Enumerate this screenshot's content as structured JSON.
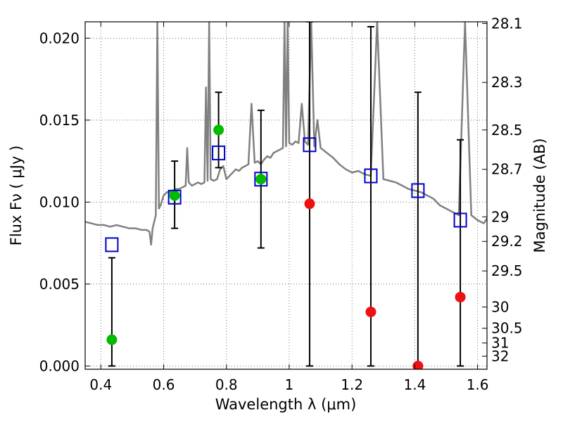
{
  "chart_data": {
    "type": "scatter",
    "title": "",
    "xlabel": "Wavelength  λ (μm)",
    "ylabel": "Flux  Fν  ( μJy )",
    "y2label": "Magnitude (AB)",
    "xlim": [
      0.35,
      1.63
    ],
    "ylim": [
      -0.0002,
      0.021
    ],
    "grid": true,
    "x_ticks": [
      0.4,
      0.6,
      0.8,
      1.0,
      1.2,
      1.4,
      1.6
    ],
    "x_tick_labels": [
      "0.4",
      "0.6",
      "0.8",
      "1",
      "1.2",
      "1.4",
      "1.6"
    ],
    "y_ticks": [
      0.0,
      0.005,
      0.01,
      0.015,
      0.02
    ],
    "y_tick_labels": [
      "0.000",
      "0.005",
      "0.010",
      "0.015",
      "0.020"
    ],
    "y2_ticks": [
      {
        "label": "28.1",
        "flux": 0.0209
      },
      {
        "label": "28.3",
        "flux": 0.0173
      },
      {
        "label": "28.5",
        "flux": 0.0144
      },
      {
        "label": "28.7",
        "flux": 0.012
      },
      {
        "label": "29",
        "flux": 0.0091
      },
      {
        "label": "29.2",
        "flux": 0.0076
      },
      {
        "label": "29.5",
        "flux": 0.0058
      },
      {
        "label": "30",
        "flux": 0.0036
      },
      {
        "label": "30.5",
        "flux": 0.0023
      },
      {
        "label": "31",
        "flux": 0.0014
      },
      {
        "label": "32",
        "flux": 0.0006
      }
    ],
    "colors": {
      "spectrum": "#808080",
      "model_box": "#0000cc",
      "detection": "#00bb00",
      "upper_limit": "#ee1111",
      "errorbar": "#000000",
      "grid": "#555555"
    },
    "spectrum": {
      "x": [
        0.35,
        0.37,
        0.39,
        0.41,
        0.43,
        0.45,
        0.47,
        0.49,
        0.51,
        0.53,
        0.545,
        0.555,
        0.56,
        0.565,
        0.575,
        0.58,
        0.585,
        0.59,
        0.6,
        0.61,
        0.62,
        0.63,
        0.64,
        0.65,
        0.66,
        0.67,
        0.675,
        0.68,
        0.69,
        0.7,
        0.71,
        0.72,
        0.73,
        0.735,
        0.74,
        0.745,
        0.75,
        0.76,
        0.77,
        0.78,
        0.79,
        0.8,
        0.81,
        0.82,
        0.83,
        0.84,
        0.85,
        0.86,
        0.87,
        0.88,
        0.89,
        0.9,
        0.91,
        0.92,
        0.93,
        0.94,
        0.95,
        0.96,
        0.97,
        0.98,
        0.985,
        0.99,
        0.995,
        1.0,
        1.01,
        1.02,
        1.03,
        1.04,
        1.05,
        1.06,
        1.07,
        1.08,
        1.09,
        1.1,
        1.12,
        1.14,
        1.16,
        1.18,
        1.2,
        1.22,
        1.24,
        1.26,
        1.28,
        1.3,
        1.32,
        1.34,
        1.36,
        1.38,
        1.4,
        1.42,
        1.44,
        1.46,
        1.48,
        1.5,
        1.52,
        1.54,
        1.56,
        1.58,
        1.6,
        1.62,
        1.63
      ],
      "y": [
        0.0088,
        0.0087,
        0.0086,
        0.0086,
        0.0085,
        0.0086,
        0.0085,
        0.0084,
        0.0084,
        0.0083,
        0.0083,
        0.0082,
        0.0074,
        0.0084,
        0.0092,
        0.021,
        0.0096,
        0.0098,
        0.0104,
        0.0106,
        0.0106,
        0.0107,
        0.0108,
        0.0108,
        0.0109,
        0.011,
        0.0133,
        0.0112,
        0.011,
        0.0111,
        0.0112,
        0.0111,
        0.0112,
        0.017,
        0.0113,
        0.021,
        0.0114,
        0.0113,
        0.0114,
        0.012,
        0.0122,
        0.0114,
        0.0116,
        0.0118,
        0.012,
        0.0119,
        0.0121,
        0.0122,
        0.0123,
        0.016,
        0.0124,
        0.0125,
        0.0123,
        0.0126,
        0.0128,
        0.0127,
        0.013,
        0.0131,
        0.0132,
        0.0133,
        0.021,
        0.0134,
        0.021,
        0.0136,
        0.0135,
        0.0137,
        0.0136,
        0.016,
        0.0137,
        0.0135,
        0.021,
        0.0134,
        0.015,
        0.0133,
        0.013,
        0.0127,
        0.0123,
        0.012,
        0.0118,
        0.0119,
        0.0117,
        0.0116,
        0.021,
        0.0114,
        0.0113,
        0.0112,
        0.011,
        0.0108,
        0.0107,
        0.0106,
        0.0104,
        0.0102,
        0.0098,
        0.0096,
        0.0094,
        0.0092,
        0.021,
        0.0092,
        0.0089,
        0.0087,
        0.009
      ]
    },
    "bands": [
      {
        "x": 0.435,
        "model": 0.0074,
        "flux": 0.0016,
        "flux_color": "detection",
        "err_low": 0.0,
        "err_high": 0.0066
      },
      {
        "x": 0.635,
        "model": 0.0103,
        "flux": 0.0104,
        "flux_color": "detection",
        "err_low": 0.0084,
        "err_high": 0.0125
      },
      {
        "x": 0.775,
        "model": 0.013,
        "flux": 0.0144,
        "flux_color": "detection",
        "err_low": 0.0121,
        "err_high": 0.0167
      },
      {
        "x": 0.91,
        "model": 0.0114,
        "flux": 0.0114,
        "flux_color": "detection",
        "err_low": 0.0072,
        "err_high": 0.0156
      },
      {
        "x": 1.065,
        "model": 0.0135,
        "flux": 0.0099,
        "flux_color": "upper_limit",
        "err_low": 0.0,
        "err_high": 0.021
      },
      {
        "x": 1.26,
        "model": 0.0116,
        "flux": 0.0033,
        "flux_color": "upper_limit",
        "err_low": 0.0,
        "err_high": 0.0207
      },
      {
        "x": 1.41,
        "model": 0.0107,
        "flux": 0.0,
        "flux_color": "upper_limit",
        "err_low": 0.0,
        "err_high": 0.0167
      },
      {
        "x": 1.545,
        "model": 0.0089,
        "flux": 0.0042,
        "flux_color": "upper_limit",
        "err_low": 0.0,
        "err_high": 0.0138
      }
    ]
  }
}
